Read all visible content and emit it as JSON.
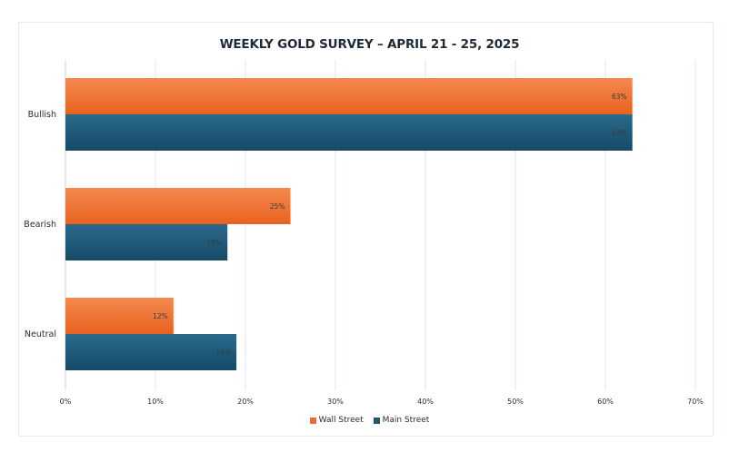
{
  "chart_data": {
    "type": "bar",
    "orientation": "horizontal",
    "title": "WEEKLY GOLD SURVEY – APRIL 21 - 25, 2025",
    "categories": [
      "Bullish",
      "Bearish",
      "Neutral"
    ],
    "series": [
      {
        "name": "Wall Street",
        "values": [
          63,
          25,
          12
        ],
        "labels": [
          "63%",
          "25%",
          "12%"
        ],
        "color": "#ee6c2b"
      },
      {
        "name": "Main Street",
        "values": [
          63,
          18,
          19
        ],
        "labels": [
          "63%",
          "18%",
          "19%"
        ],
        "color": "#1e5674"
      }
    ],
    "xlim": [
      0,
      70
    ],
    "xticks": [
      "0%",
      "10%",
      "20%",
      "30%",
      "40%",
      "50%",
      "60%",
      "70%"
    ],
    "grid": true,
    "legend_position": "bottom"
  }
}
